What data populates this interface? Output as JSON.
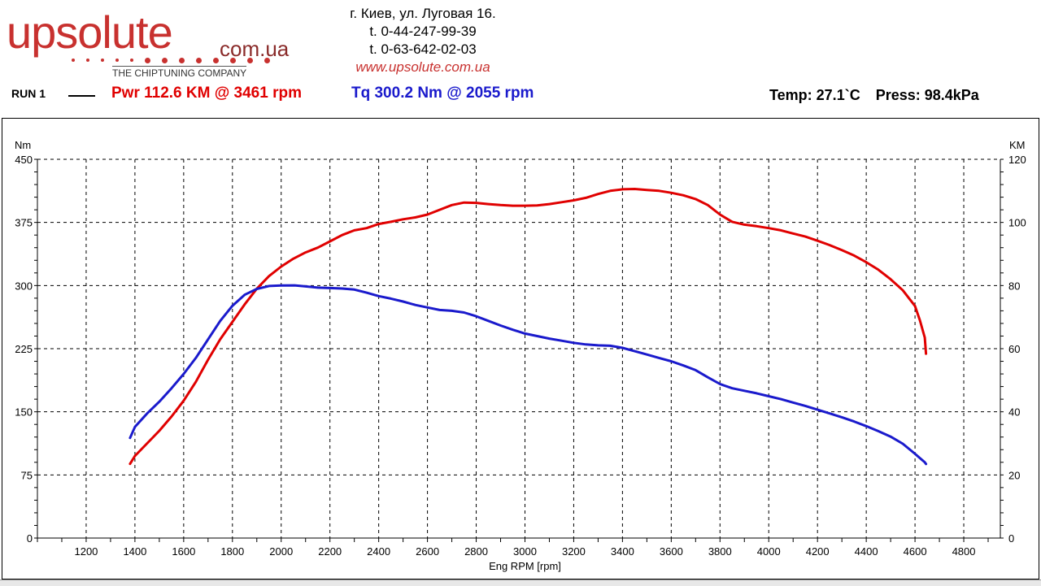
{
  "logo": {
    "word": "upsolute",
    "domain": "com.ua",
    "tagline": "THE CHIPTUNING COMPANY"
  },
  "contacts": {
    "address": "г. Киев, ул. Луговая 16.",
    "phone1": "t. 0-44-247-99-39",
    "phone2": "t. 0-63-642-02-03",
    "website": "www.upsolute.com.ua"
  },
  "header": {
    "run_label": "RUN 1",
    "power_summary": "Pwr  112.6 KM @ 3461 rpm",
    "torque_summary": "Tq 300.2 Nm @ 2055 rpm",
    "temp": "Temp: 27.1`C",
    "press": "Press: 98.4kPa"
  },
  "colors": {
    "power": "#e00000",
    "torque": "#1a1acc",
    "grid": "#000000"
  },
  "chart_data": {
    "type": "line",
    "xlabel": "Eng RPM [rpm]",
    "ylabel_left": "Nm",
    "ylabel_right": "KM",
    "xlim": [
      1000,
      4950
    ],
    "ylim_left": [
      0,
      450
    ],
    "ylim_right": [
      0,
      120
    ],
    "x_ticks": [
      1200,
      1400,
      1600,
      1800,
      2000,
      2200,
      2400,
      2600,
      2800,
      3000,
      3200,
      3400,
      3600,
      3800,
      4000,
      4200,
      4400,
      4600,
      4800
    ],
    "y_ticks_left": [
      0,
      75,
      150,
      225,
      300,
      375,
      450
    ],
    "y_ticks_right": [
      0,
      20,
      40,
      60,
      80,
      100,
      120
    ],
    "grid": true,
    "series": [
      {
        "name": "Pwr",
        "axis": "right",
        "x": [
          1380,
          1400,
          1450,
          1500,
          1550,
          1600,
          1650,
          1700,
          1750,
          1800,
          1850,
          1900,
          1950,
          2000,
          2050,
          2100,
          2150,
          2200,
          2250,
          2300,
          2350,
          2400,
          2450,
          2500,
          2550,
          2600,
          2650,
          2700,
          2750,
          2800,
          2850,
          2900,
          2950,
          3000,
          3050,
          3100,
          3150,
          3200,
          3250,
          3300,
          3350,
          3400,
          3450,
          3500,
          3550,
          3600,
          3650,
          3700,
          3750,
          3800,
          3850,
          3900,
          3950,
          4000,
          4050,
          4100,
          4150,
          4200,
          4250,
          4300,
          4350,
          4400,
          4450,
          4500,
          4550,
          4600,
          4620,
          4640,
          4645
        ],
        "values": [
          23.5,
          26,
          30,
          34,
          38.5,
          43.5,
          49.5,
          56.5,
          63,
          68.5,
          74,
          79,
          83,
          86,
          88.5,
          90.5,
          92,
          94,
          96,
          97.5,
          98.2,
          99.5,
          100.2,
          101,
          101.6,
          102.5,
          104,
          105.5,
          106.3,
          106.2,
          105.8,
          105.5,
          105.3,
          105.3,
          105.4,
          105.8,
          106.4,
          107,
          107.8,
          109,
          110,
          110.5,
          110.6,
          110.3,
          110,
          109.4,
          108.6,
          107.4,
          105.5,
          102.5,
          100.2,
          99.3,
          98.8,
          98.2,
          97.5,
          96.5,
          95.5,
          94.2,
          92.8,
          91.2,
          89.5,
          87.4,
          85,
          82,
          78.5,
          73.5,
          69,
          63.5,
          58.4
        ]
      },
      {
        "name": "Tq",
        "axis": "left",
        "x": [
          1380,
          1400,
          1450,
          1500,
          1550,
          1600,
          1650,
          1700,
          1750,
          1800,
          1850,
          1900,
          1950,
          2000,
          2055,
          2100,
          2150,
          2200,
          2250,
          2300,
          2350,
          2400,
          2450,
          2500,
          2550,
          2600,
          2650,
          2700,
          2750,
          2800,
          2850,
          2900,
          2950,
          3000,
          3050,
          3100,
          3150,
          3200,
          3250,
          3300,
          3350,
          3400,
          3450,
          3500,
          3550,
          3600,
          3650,
          3700,
          3750,
          3800,
          3850,
          3900,
          3950,
          4000,
          4050,
          4100,
          4150,
          4200,
          4250,
          4300,
          4350,
          4400,
          4450,
          4500,
          4550,
          4600,
          4620,
          4640,
          4645
        ],
        "values": [
          119,
          132,
          148,
          162,
          178,
          195,
          214,
          236,
          258,
          276,
          289,
          296,
          299.5,
          300,
          300.2,
          299,
          297.5,
          297,
          296.5,
          295.2,
          291.5,
          287.5,
          284.5,
          281,
          277,
          274,
          271,
          270,
          268,
          263.5,
          258,
          252.5,
          247.5,
          243,
          240,
          237,
          234.5,
          232,
          230,
          229,
          228.5,
          226,
          222,
          218,
          214,
          210,
          205,
          199.5,
          191,
          183,
          178,
          175,
          172,
          168.5,
          165,
          161,
          157,
          152.5,
          148,
          143.5,
          138.5,
          133,
          127,
          120.5,
          112,
          100,
          95,
          90,
          88
        ]
      }
    ]
  }
}
